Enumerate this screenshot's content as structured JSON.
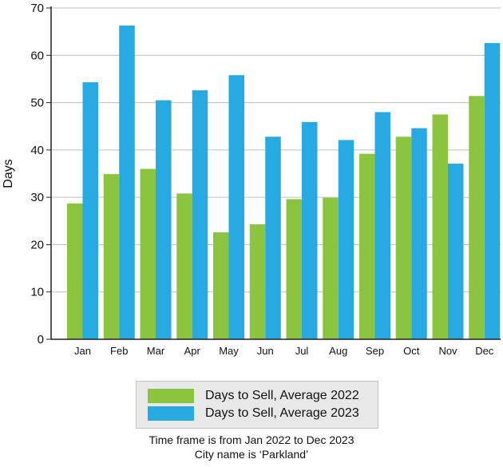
{
  "chart_data": {
    "type": "bar",
    "categories": [
      "Jan",
      "Feb",
      "Mar",
      "Apr",
      "May",
      "Jun",
      "Jul",
      "Aug",
      "Sep",
      "Oct",
      "Nov",
      "Dec"
    ],
    "series": [
      {
        "name": "Days to Sell, Average 2022",
        "color": "#8bc540",
        "values": [
          28.7,
          34.9,
          36.0,
          30.8,
          22.6,
          24.3,
          29.6,
          29.9,
          39.2,
          42.8,
          47.5,
          51.4
        ]
      },
      {
        "name": "Days to Sell, Average 2023",
        "color": "#27a9e1",
        "values": [
          54.3,
          66.3,
          50.5,
          52.6,
          55.8,
          42.8,
          45.9,
          42.1,
          48.0,
          44.6,
          37.1,
          62.6
        ]
      }
    ],
    "ylabel": "Days",
    "xlabel": "",
    "ylim": [
      0,
      70
    ],
    "yticks": [
      0,
      10,
      20,
      30,
      40,
      50,
      60,
      70
    ],
    "grid": true,
    "legend_position": "bottom"
  },
  "footnotes": {
    "line1": "Time frame is from Jan 2022 to Dec 2023",
    "line2": "City name is ‘Parkland’"
  }
}
